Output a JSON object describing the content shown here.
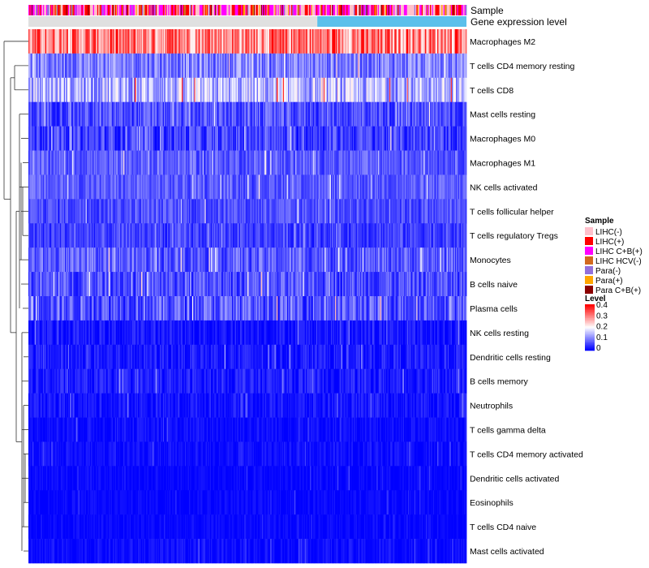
{
  "chart_data": {
    "type": "heatmap",
    "title": "",
    "annotation_tracks": [
      {
        "name": "Sample",
        "label": "Sample"
      },
      {
        "name": "Gene expression level",
        "label": "Gene expression level"
      }
    ],
    "rows": [
      {
        "label": "Macrophages M2",
        "mean": 0.3,
        "spread": 0.1
      },
      {
        "label": "T cells CD4 memory resting",
        "mean": 0.1,
        "spread": 0.06
      },
      {
        "label": "T cells CD8",
        "mean": 0.14,
        "spread": 0.08
      },
      {
        "label": "Mast cells resting",
        "mean": 0.06,
        "spread": 0.05
      },
      {
        "label": "Macrophages M0",
        "mean": 0.05,
        "spread": 0.05
      },
      {
        "label": "Macrophages M1",
        "mean": 0.07,
        "spread": 0.04
      },
      {
        "label": "NK cells activated",
        "mean": 0.07,
        "spread": 0.04
      },
      {
        "label": "T cells follicular helper",
        "mean": 0.06,
        "spread": 0.04
      },
      {
        "label": "T cells regulatory  Tregs",
        "mean": 0.05,
        "spread": 0.04
      },
      {
        "label": "Monocytes",
        "mean": 0.07,
        "spread": 0.05
      },
      {
        "label": "B cells naive",
        "mean": 0.06,
        "spread": 0.05
      },
      {
        "label": "Plasma cells",
        "mean": 0.07,
        "spread": 0.06
      },
      {
        "label": "NK cells resting",
        "mean": 0.015,
        "spread": 0.03
      },
      {
        "label": "Dendritic cells resting",
        "mean": 0.02,
        "spread": 0.03
      },
      {
        "label": "B cells memory",
        "mean": 0.02,
        "spread": 0.03
      },
      {
        "label": "Neutrophils",
        "mean": 0.015,
        "spread": 0.025
      },
      {
        "label": "T cells gamma delta",
        "mean": 0.01,
        "spread": 0.02
      },
      {
        "label": "T cells CD4 memory activated",
        "mean": 0.01,
        "spread": 0.02
      },
      {
        "label": "Dendritic cells activated",
        "mean": 0.005,
        "spread": 0.015
      },
      {
        "label": "Eosinophils",
        "mean": 0.005,
        "spread": 0.015
      },
      {
        "label": "T cells CD4 naive",
        "mean": 0.005,
        "spread": 0.015
      },
      {
        "label": "Mast cells activated",
        "mean": 0.008,
        "spread": 0.02
      }
    ],
    "n_samples": 420,
    "value_range": [
      0,
      0.4
    ],
    "color_scale": {
      "low": "#0000ff",
      "mid": "#ffffff",
      "high": "#ff0000",
      "mid_value": 0.2
    },
    "legend": {
      "sample_title": "Sample",
      "sample_categories": [
        {
          "label": "LIHC(-)",
          "color": "#ffc0cb"
        },
        {
          "label": "LIHC(+)",
          "color": "#ff0000"
        },
        {
          "label": "LIHC C+B(+)",
          "color": "#ff00ff"
        },
        {
          "label": "LIHC HCV(-)",
          "color": "#d2691e"
        },
        {
          "label": "Para(-)",
          "color": "#9370db"
        },
        {
          "label": "Para(+)",
          "color": "#ffa500"
        },
        {
          "label": "Para C+B(+)",
          "color": "#8b0000"
        }
      ],
      "level_title": "Level",
      "level_ticks": [
        "0.4",
        "0.3",
        "0.2",
        "0.1",
        "0"
      ]
    },
    "expression_level_colors": [
      "#e0e0e0",
      "#5bc0eb"
    ]
  }
}
